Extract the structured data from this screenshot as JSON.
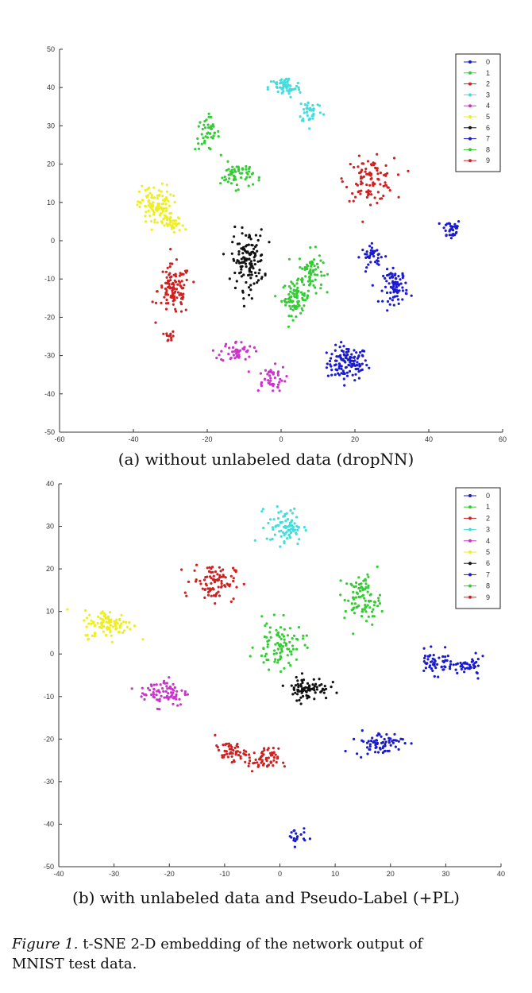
{
  "figure": {
    "label": "Figure 1.",
    "text_line1": "t-SNE 2-D embedding of the network output of",
    "text_line2": "MNIST test data."
  },
  "colors": {
    "0": "#1a1ad0",
    "1": "#33cc33",
    "2": "#cc2222",
    "3": "#44dddd",
    "4": "#cc33cc",
    "5": "#eeee22",
    "6": "#111111",
    "7": "#1a1ad0",
    "8": "#33cc33",
    "9": "#cc2222"
  },
  "chart_data": [
    {
      "type": "scatter",
      "title": "(a) without unlabeled data (dropNN)",
      "xlim": [
        -60,
        60
      ],
      "ylim": [
        -50,
        50
      ],
      "xticks": [
        -60,
        -40,
        -20,
        0,
        20,
        40,
        60
      ],
      "yticks": [
        -50,
        -40,
        -30,
        -20,
        -10,
        0,
        10,
        20,
        30,
        40,
        50
      ],
      "legend_position": "top-right",
      "legend": [
        "0",
        "1",
        "2",
        "3",
        "4",
        "5",
        "6",
        "7",
        "8",
        "9"
      ],
      "grid": false,
      "series": [
        {
          "name": "0",
          "clusters": [
            {
              "cx": 18,
              "cy": -32,
              "rx": 5,
              "ry": 4,
              "n": 120
            },
            {
              "cx": 46,
              "cy": 3,
              "rx": 2.5,
              "ry": 2.5,
              "n": 35
            }
          ]
        },
        {
          "name": "1",
          "clusters": [
            {
              "cx": 8,
              "cy": -8,
              "rx": 3,
              "ry": 5,
              "n": 70
            },
            {
              "cx": 4,
              "cy": -15,
              "rx": 3.5,
              "ry": 4,
              "n": 80
            },
            {
              "cx": -20,
              "cy": 28,
              "rx": 3,
              "ry": 4,
              "n": 45
            }
          ]
        },
        {
          "name": "2",
          "clusters": [
            {
              "cx": -29,
              "cy": -13,
              "rx": 4,
              "ry": 6,
              "n": 110
            },
            {
              "cx": -30,
              "cy": -25,
              "rx": 1.2,
              "ry": 1.2,
              "n": 12
            },
            {
              "cx": 24,
              "cy": 16,
              "rx": 6,
              "ry": 5,
              "n": 100
            }
          ]
        },
        {
          "name": "3",
          "clusters": [
            {
              "cx": 1,
              "cy": 40,
              "rx": 4,
              "ry": 2.5,
              "n": 60
            },
            {
              "cx": 8,
              "cy": 34,
              "rx": 3,
              "ry": 3,
              "n": 40
            }
          ]
        },
        {
          "name": "4",
          "clusters": [
            {
              "cx": -12,
              "cy": -29,
              "rx": 4,
              "ry": 2.5,
              "n": 45
            },
            {
              "cx": -3,
              "cy": -36,
              "rx": 4,
              "ry": 3,
              "n": 45
            }
          ]
        },
        {
          "name": "5",
          "clusters": [
            {
              "cx": -34,
              "cy": 9,
              "rx": 4,
              "ry": 5,
              "n": 110
            },
            {
              "cx": -29,
              "cy": 4,
              "rx": 2.5,
              "ry": 2,
              "n": 30
            }
          ]
        },
        {
          "name": "6",
          "clusters": [
            {
              "cx": -9,
              "cy": -5,
              "rx": 4,
              "ry": 7,
              "n": 130
            }
          ]
        },
        {
          "name": "7",
          "clusters": [
            {
              "cx": 31,
              "cy": -12,
              "rx": 3,
              "ry": 4,
              "n": 80
            },
            {
              "cx": 25,
              "cy": -4,
              "rx": 3,
              "ry": 2.5,
              "n": 40
            }
          ]
        },
        {
          "name": "8",
          "clusters": [
            {
              "cx": -12,
              "cy": 17,
              "rx": 4,
              "ry": 3,
              "n": 60
            }
          ]
        },
        {
          "name": "9",
          "clusters": []
        }
      ]
    },
    {
      "type": "scatter",
      "title": "(b) with unlabeled data and Pseudo-Label (+PL)",
      "xlim": [
        -40,
        40
      ],
      "ylim": [
        -50,
        40
      ],
      "xticks": [
        -40,
        -30,
        -20,
        -10,
        0,
        10,
        20,
        30,
        40
      ],
      "yticks": [
        -50,
        -40,
        -30,
        -20,
        -10,
        0,
        10,
        20,
        30,
        40
      ],
      "legend_position": "top-right",
      "legend": [
        "0",
        "1",
        "2",
        "3",
        "4",
        "5",
        "6",
        "7",
        "8",
        "9"
      ],
      "grid": false,
      "series": [
        {
          "name": "0",
          "clusters": [
            {
              "cx": 28,
              "cy": -2,
              "rx": 3,
              "ry": 2.5,
              "n": 50
            },
            {
              "cx": 34,
              "cy": -3,
              "rx": 3,
              "ry": 2,
              "n": 45
            },
            {
              "cx": 3,
              "cy": -43,
              "rx": 1.5,
              "ry": 2,
              "n": 20
            }
          ]
        },
        {
          "name": "1",
          "clusters": [
            {
              "cx": 0,
              "cy": 2,
              "rx": 4,
              "ry": 5,
              "n": 90
            }
          ]
        },
        {
          "name": "2",
          "clusters": [
            {
              "cx": -12,
              "cy": 17,
              "rx": 3.5,
              "ry": 4,
              "n": 90
            },
            {
              "cx": -3,
              "cy": -25,
              "rx": 2.5,
              "ry": 2.5,
              "n": 60
            }
          ]
        },
        {
          "name": "3",
          "clusters": [
            {
              "cx": 1,
              "cy": 30,
              "rx": 3,
              "ry": 4,
              "n": 80
            }
          ]
        },
        {
          "name": "4",
          "clusters": [
            {
              "cx": -21,
              "cy": -9,
              "rx": 4,
              "ry": 3,
              "n": 80
            }
          ]
        },
        {
          "name": "5",
          "clusters": [
            {
              "cx": -31,
              "cy": 7,
              "rx": 4,
              "ry": 3,
              "n": 100
            }
          ]
        },
        {
          "name": "6",
          "clusters": [
            {
              "cx": 5,
              "cy": -8,
              "rx": 3.5,
              "ry": 2.5,
              "n": 80
            }
          ]
        },
        {
          "name": "7",
          "clusters": [
            {
              "cx": 18,
              "cy": -21,
              "rx": 4,
              "ry": 2.5,
              "n": 70
            }
          ]
        },
        {
          "name": "8",
          "clusters": [
            {
              "cx": 15,
              "cy": 13,
              "rx": 3,
              "ry": 5,
              "n": 90
            }
          ]
        },
        {
          "name": "9",
          "clusters": [
            {
              "cx": -9,
              "cy": -23,
              "rx": 2.5,
              "ry": 2,
              "n": 50
            }
          ]
        }
      ]
    }
  ]
}
